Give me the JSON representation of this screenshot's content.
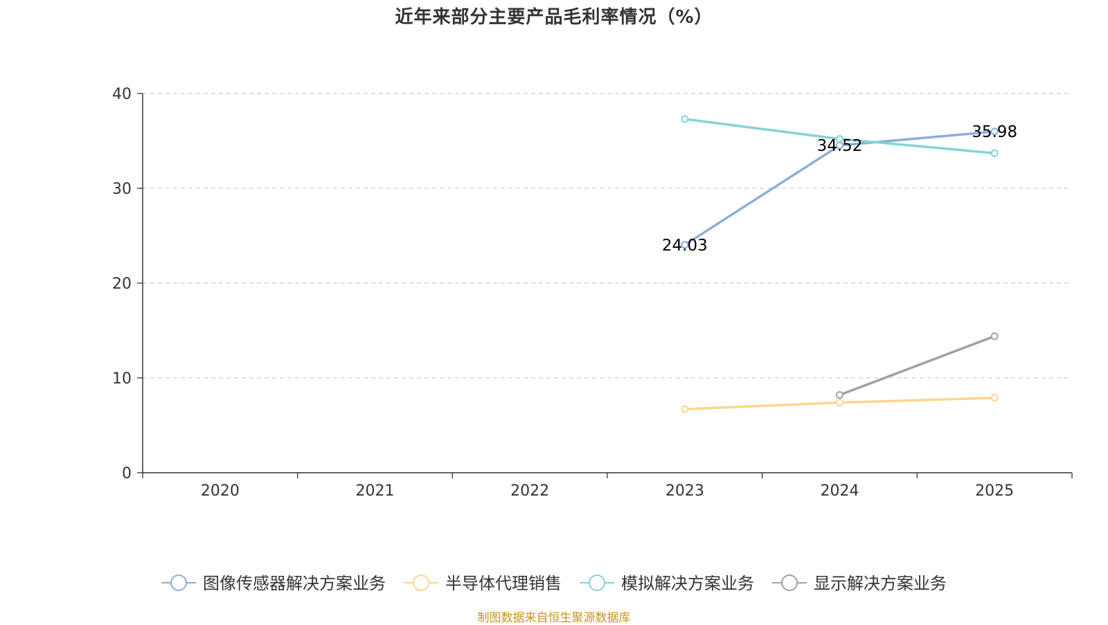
{
  "chart_data": {
    "type": "line",
    "title": "近年来部分主要产品毛利率情况（%）",
    "xlabel": "",
    "ylabel": "",
    "categories": [
      "2020",
      "2021",
      "2022",
      "2023",
      "2024",
      "2025"
    ],
    "ylim": [
      0,
      40
    ],
    "yticks": [
      0,
      10,
      20,
      30,
      40
    ],
    "grid": "horizontal-dashed",
    "legend_position": "bottom",
    "series": [
      {
        "name": "图像传感器解决方案业务",
        "color": "#8eadd9",
        "values": [
          null,
          null,
          null,
          24.03,
          34.52,
          35.98
        ],
        "data_labels": [
          "",
          "",
          "",
          "24.03",
          "34.52",
          "35.98"
        ]
      },
      {
        "name": "半导体代理销售",
        "color": "#fcd68e",
        "values": [
          null,
          null,
          null,
          6.7,
          7.4,
          7.9
        ],
        "data_labels": [
          "",
          "",
          "",
          "",
          "",
          ""
        ]
      },
      {
        "name": "模拟解决方案业务",
        "color": "#85d3d6",
        "values": [
          null,
          null,
          null,
          37.3,
          35.2,
          33.7
        ],
        "data_labels": [
          "",
          "",
          "",
          "",
          "",
          ""
        ]
      },
      {
        "name": "显示解决方案业务",
        "color": "#a0a0a0",
        "values": [
          null,
          null,
          null,
          null,
          8.2,
          14.4
        ],
        "data_labels": [
          "",
          "",
          "",
          "",
          "",
          ""
        ]
      }
    ]
  },
  "footer": {
    "source": "制图数据来自恒生聚源数据库"
  }
}
